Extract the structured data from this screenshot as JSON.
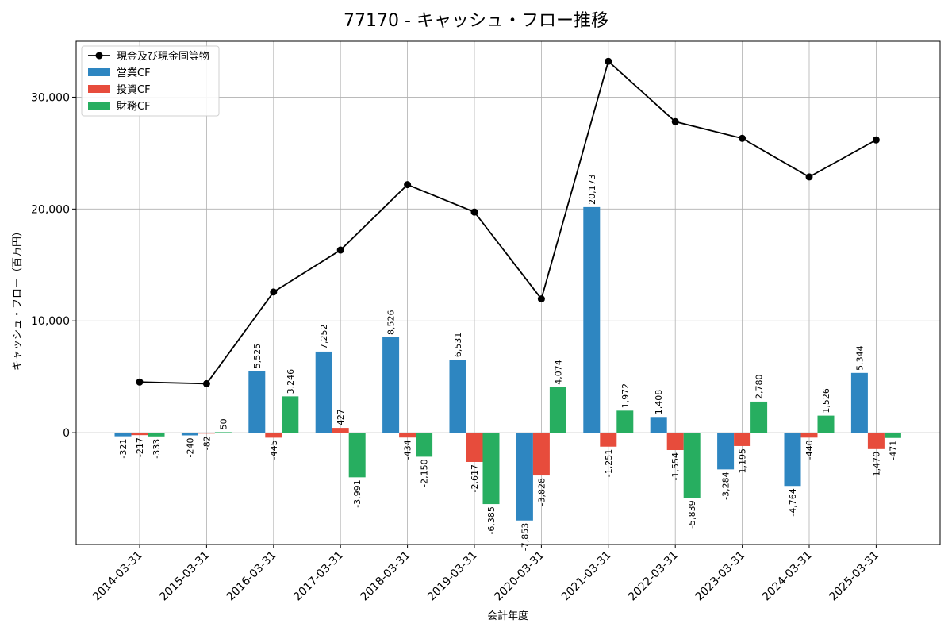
{
  "chart_data": {
    "type": "bar",
    "title": "77170 - キャッシュ・フロー推移",
    "xlabel": "会計年度",
    "ylabel": "キャッシュ・フロー（百万円）",
    "categories": [
      "2014-03-31",
      "2015-03-31",
      "2016-03-31",
      "2017-03-31",
      "2018-03-31",
      "2019-03-31",
      "2020-03-31",
      "2021-03-31",
      "2022-03-31",
      "2023-03-31",
      "2024-03-31",
      "2025-03-31"
    ],
    "ylim": [
      -10000,
      35000
    ],
    "yticks": [
      0,
      10000,
      20000,
      30000
    ],
    "ytick_labels": [
      "0",
      "10,000",
      "20,000",
      "30,000"
    ],
    "grid": true,
    "legend_position": "top-left",
    "series": [
      {
        "name": "営業CF",
        "kind": "bar",
        "color": "#2e86c1",
        "values": [
          -321,
          -240,
          5525,
          7252,
          8526,
          6531,
          -7853,
          20173,
          1408,
          -3284,
          -4764,
          5344
        ],
        "labels": [
          "-321",
          "-240",
          "5,525",
          "7,252",
          "8,526",
          "6,531",
          "-7,853",
          "20,173",
          "1,408",
          "-3,284",
          "-4,764",
          "5,344"
        ]
      },
      {
        "name": "投資CF",
        "kind": "bar",
        "color": "#e74c3c",
        "values": [
          -217,
          -82,
          -445,
          427,
          -434,
          -2617,
          -3828,
          -1251,
          -1554,
          -1195,
          -440,
          -1470
        ],
        "labels": [
          "-217",
          "-82",
          "-445",
          "427",
          "-434",
          "-2,617",
          "-3,828",
          "-1,251",
          "-1,554",
          "-1,195",
          "-440",
          "-1,470"
        ]
      },
      {
        "name": "財務CF",
        "kind": "bar",
        "color": "#27ae60",
        "values": [
          -333,
          50,
          3246,
          -3991,
          -2150,
          -6385,
          4074,
          1972,
          -5839,
          2780,
          1526,
          -471
        ],
        "labels": [
          "-333",
          "50",
          "3,246",
          "-3,991",
          "-2,150",
          "-6,385",
          "4,074",
          "1,972",
          "-5,839",
          "2,780",
          "1,526",
          "-471"
        ]
      },
      {
        "name": "現金及び現金同等物",
        "kind": "line",
        "color": "#000000",
        "values": [
          4530,
          4380,
          12580,
          16330,
          22180,
          19730,
          11960,
          33210,
          27810,
          26320,
          22870,
          26180
        ]
      }
    ]
  }
}
